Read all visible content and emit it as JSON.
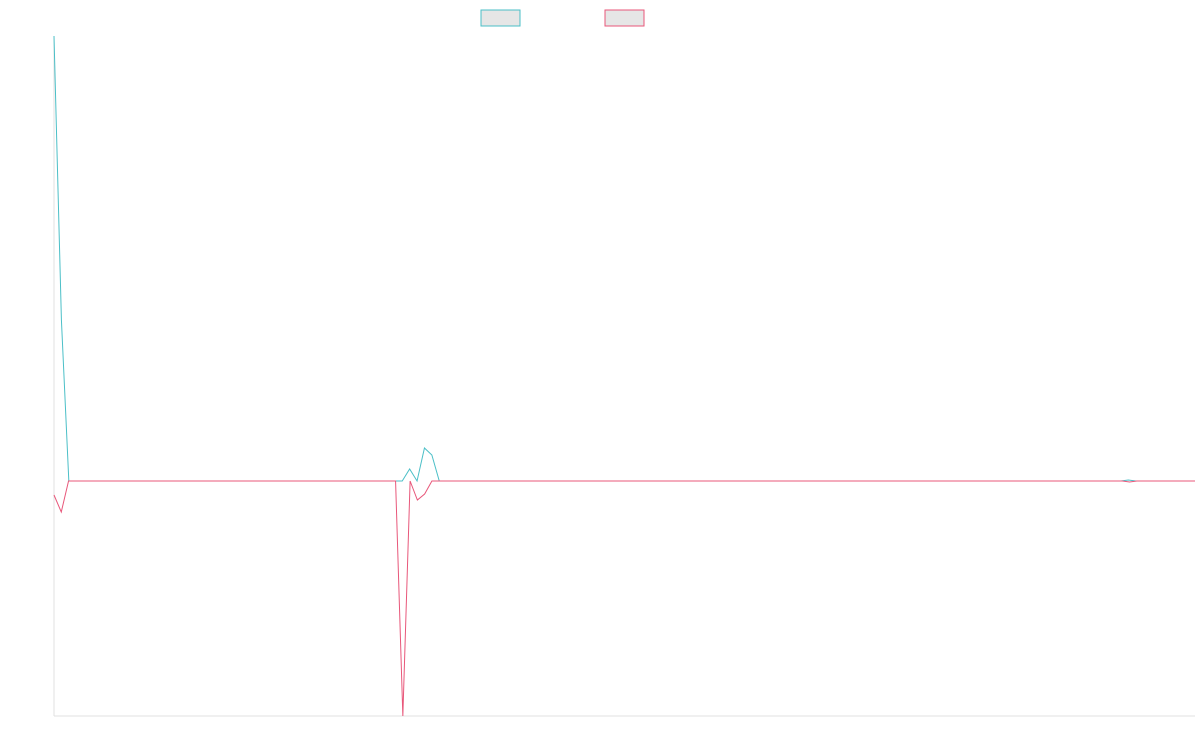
{
  "chart_data": {
    "type": "line",
    "ylim": [
      -235,
      445
    ],
    "series": [
      {
        "color": "#4bbfc7",
        "values": [
          445,
          161,
          0,
          0,
          0,
          0,
          0,
          0,
          0,
          0,
          0,
          0,
          0,
          0,
          0,
          0,
          0,
          0,
          0,
          0,
          0,
          0,
          0,
          0,
          0,
          0,
          0,
          0,
          0,
          0,
          0,
          0,
          0,
          0,
          0,
          0,
          0,
          0,
          0,
          0,
          0,
          0,
          0,
          0,
          0,
          0,
          0,
          0,
          12,
          0,
          33,
          26,
          0,
          0,
          0,
          0,
          0,
          0,
          0,
          0,
          0,
          0,
          0,
          0,
          0,
          0,
          0,
          0,
          0,
          0,
          0,
          0,
          0,
          0,
          0,
          0,
          0,
          0,
          0,
          0,
          0,
          0,
          0,
          0,
          0,
          0,
          0,
          0,
          0,
          0,
          0,
          0,
          0,
          0,
          0,
          0,
          0,
          0,
          0,
          0,
          0,
          0,
          0,
          0,
          0,
          0,
          0,
          0,
          0,
          0,
          0,
          0,
          0,
          0,
          0,
          0,
          0,
          0,
          0,
          0,
          0,
          0,
          0,
          0,
          0,
          0,
          0,
          0,
          0,
          0,
          0,
          0,
          0,
          0,
          0,
          0,
          0,
          0,
          0,
          0,
          0,
          0,
          0,
          0,
          0,
          1,
          0,
          0,
          0,
          0,
          0,
          0,
          0,
          0,
          0
        ]
      },
      {
        "color": "#e8577a",
        "values": [
          -14,
          -31,
          0,
          0,
          0,
          0,
          0,
          0,
          0,
          0,
          0,
          0,
          0,
          0,
          0,
          0,
          0,
          0,
          0,
          0,
          0,
          0,
          0,
          0,
          0,
          0,
          0,
          0,
          0,
          0,
          0,
          0,
          0,
          0,
          0,
          0,
          0,
          0,
          0,
          0,
          0,
          0,
          0,
          0,
          0,
          0,
          0,
          0,
          -235,
          0,
          -19,
          -13,
          0,
          0,
          0,
          0,
          0,
          0,
          0,
          0,
          0,
          0,
          0,
          0,
          0,
          0,
          0,
          0,
          0,
          0,
          0,
          0,
          0,
          0,
          0,
          0,
          0,
          0,
          0,
          0,
          0,
          0,
          0,
          0,
          0,
          0,
          0,
          0,
          0,
          0,
          0,
          0,
          0,
          0,
          0,
          0,
          0,
          0,
          0,
          0,
          0,
          0,
          0,
          0,
          0,
          0,
          0,
          0,
          0,
          0,
          0,
          0,
          0,
          0,
          0,
          0,
          0,
          0,
          0,
          0,
          0,
          0,
          0,
          0,
          0,
          0,
          0,
          0,
          0,
          0,
          0,
          0,
          0,
          0,
          0,
          0,
          0,
          0,
          0,
          0,
          0,
          0,
          0,
          0,
          0,
          0,
          0,
          0,
          -1,
          0,
          0,
          0,
          0,
          0,
          0,
          0,
          0,
          0
        ]
      }
    ]
  }
}
